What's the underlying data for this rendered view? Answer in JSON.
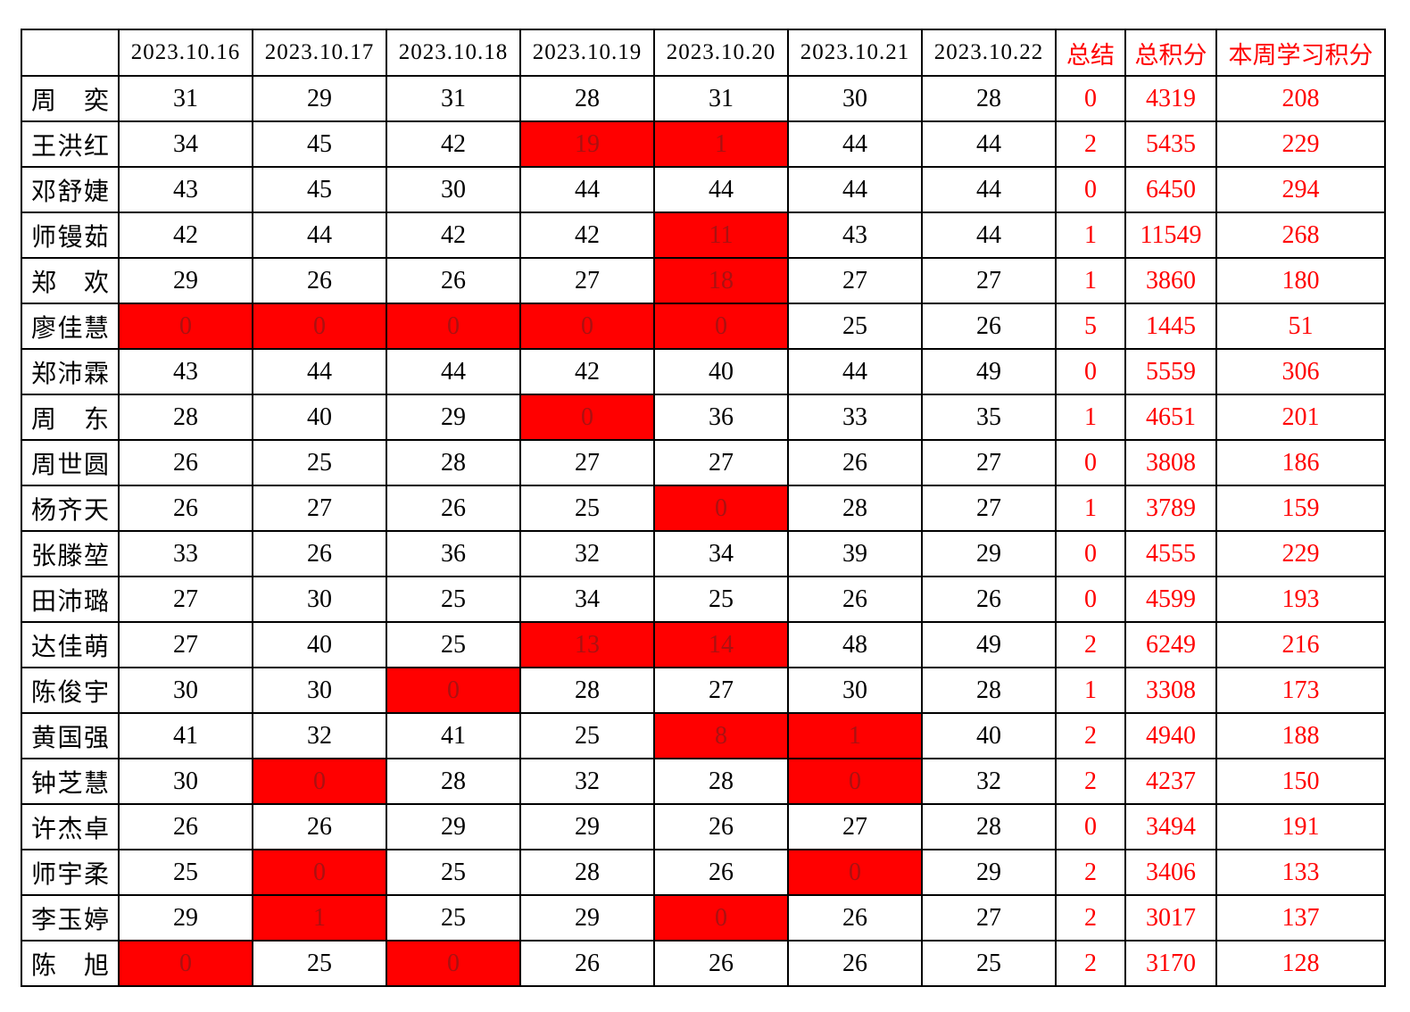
{
  "colors": {
    "highlight_cell_bg": "#ff0000",
    "highlight_cell_text": "#aa1111",
    "accent_text": "#ff0000",
    "grid_line": "#000000",
    "regular_text": "#000000",
    "page_bg": "#ffffff"
  },
  "table": {
    "columns": [
      "",
      "2023.10.16",
      "2023.10.17",
      "2023.10.18",
      "2023.10.19",
      "2023.10.20",
      "2023.10.21",
      "2023.10.22",
      "总结",
      "总积分",
      "本周学习积分"
    ],
    "rows": [
      {
        "name": "周　奕",
        "daily": [
          31,
          29,
          31,
          28,
          31,
          30,
          28
        ],
        "red_days": [],
        "summary": 0,
        "total": 4319,
        "weekly": 208
      },
      {
        "name": "王洪红",
        "daily": [
          34,
          45,
          42,
          19,
          1,
          44,
          44
        ],
        "red_days": [
          3,
          4
        ],
        "summary": 2,
        "total": 5435,
        "weekly": 229
      },
      {
        "name": "邓舒婕",
        "daily": [
          43,
          45,
          30,
          44,
          44,
          44,
          44
        ],
        "red_days": [],
        "summary": 0,
        "total": 6450,
        "weekly": 294
      },
      {
        "name": "师镘茹",
        "daily": [
          42,
          44,
          42,
          42,
          11,
          43,
          44
        ],
        "red_days": [
          4
        ],
        "summary": 1,
        "total": 11549,
        "weekly": 268
      },
      {
        "name": "郑　欢",
        "daily": [
          29,
          26,
          26,
          27,
          18,
          27,
          27
        ],
        "red_days": [
          4
        ],
        "summary": 1,
        "total": 3860,
        "weekly": 180
      },
      {
        "name": "廖佳慧",
        "daily": [
          0,
          0,
          0,
          0,
          0,
          25,
          26
        ],
        "red_days": [
          0,
          1,
          2,
          3,
          4
        ],
        "summary": 5,
        "total": 1445,
        "weekly": 51
      },
      {
        "name": "郑沛霖",
        "daily": [
          43,
          44,
          44,
          42,
          40,
          44,
          49
        ],
        "red_days": [],
        "summary": 0,
        "total": 5559,
        "weekly": 306
      },
      {
        "name": "周　东",
        "daily": [
          28,
          40,
          29,
          0,
          36,
          33,
          35
        ],
        "red_days": [
          3
        ],
        "summary": 1,
        "total": 4651,
        "weekly": 201
      },
      {
        "name": "周世圆",
        "daily": [
          26,
          25,
          28,
          27,
          27,
          26,
          27
        ],
        "red_days": [],
        "summary": 0,
        "total": 3808,
        "weekly": 186
      },
      {
        "name": "杨齐天",
        "daily": [
          26,
          27,
          26,
          25,
          0,
          28,
          27
        ],
        "red_days": [
          4
        ],
        "summary": 1,
        "total": 3789,
        "weekly": 159
      },
      {
        "name": "张滕堃",
        "daily": [
          33,
          26,
          36,
          32,
          34,
          39,
          29
        ],
        "red_days": [],
        "summary": 0,
        "total": 4555,
        "weekly": 229
      },
      {
        "name": "田沛璐",
        "daily": [
          27,
          30,
          25,
          34,
          25,
          26,
          26
        ],
        "red_days": [],
        "summary": 0,
        "total": 4599,
        "weekly": 193
      },
      {
        "name": "达佳萌",
        "daily": [
          27,
          40,
          25,
          13,
          14,
          48,
          49
        ],
        "red_days": [
          3,
          4
        ],
        "summary": 2,
        "total": 6249,
        "weekly": 216
      },
      {
        "name": "陈俊宇",
        "daily": [
          30,
          30,
          0,
          28,
          27,
          30,
          28
        ],
        "red_days": [
          2
        ],
        "summary": 1,
        "total": 3308,
        "weekly": 173
      },
      {
        "name": "黄国强",
        "daily": [
          41,
          32,
          41,
          25,
          8,
          1,
          40
        ],
        "red_days": [
          4,
          5
        ],
        "summary": 2,
        "total": 4940,
        "weekly": 188
      },
      {
        "name": "钟芝慧",
        "daily": [
          30,
          0,
          28,
          32,
          28,
          0,
          32
        ],
        "red_days": [
          1,
          5
        ],
        "summary": 2,
        "total": 4237,
        "weekly": 150
      },
      {
        "name": "许杰卓",
        "daily": [
          26,
          26,
          29,
          29,
          26,
          27,
          28
        ],
        "red_days": [],
        "summary": 0,
        "total": 3494,
        "weekly": 191
      },
      {
        "name": "师宇柔",
        "daily": [
          25,
          0,
          25,
          28,
          26,
          0,
          29
        ],
        "red_days": [
          1,
          5
        ],
        "summary": 2,
        "total": 3406,
        "weekly": 133
      },
      {
        "name": "李玉婷",
        "daily": [
          29,
          1,
          25,
          29,
          0,
          26,
          27
        ],
        "red_days": [
          1,
          4
        ],
        "summary": 2,
        "total": 3017,
        "weekly": 137
      },
      {
        "name": "陈　旭",
        "daily": [
          0,
          25,
          0,
          26,
          26,
          26,
          25
        ],
        "red_days": [
          0,
          2
        ],
        "summary": 2,
        "total": 3170,
        "weekly": 128
      }
    ]
  }
}
